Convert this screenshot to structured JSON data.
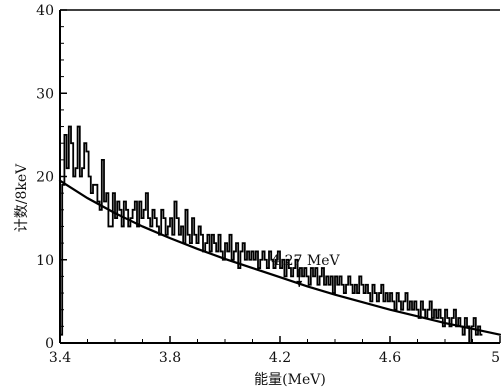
{
  "chart_data": {
    "type": "line",
    "xlabel": "能量(MeV)",
    "ylabel": "计数/8keV",
    "xlim": [
      3.4,
      5.0
    ],
    "ylim": [
      0,
      40
    ],
    "x_ticks": [
      "3.4",
      "3.8",
      "4.2",
      "4.6",
      "5"
    ],
    "y_ticks": [
      "0",
      "10",
      "20",
      "30",
      "40"
    ],
    "grid": false,
    "annotations": [
      {
        "text": "4.27 MeV",
        "x": 4.27,
        "y": 6.5
      }
    ],
    "series": [
      {
        "style": "histogram",
        "x_start": 3.4,
        "bin_width": 0.008,
        "values": [
          1,
          19,
          25,
          21,
          26,
          24,
          20,
          21,
          26,
          20,
          21,
          24,
          23,
          20,
          18,
          19,
          19,
          17,
          16,
          22,
          17,
          18,
          14,
          14,
          18,
          15,
          17,
          16,
          14,
          17,
          16,
          14,
          15,
          16,
          17,
          14,
          17,
          15,
          16,
          18,
          15,
          14,
          16,
          15,
          14,
          13,
          16,
          15,
          13,
          14,
          15,
          13,
          17,
          15,
          13,
          14,
          12,
          16,
          13,
          12,
          15,
          13,
          12,
          14,
          13,
          11,
          12,
          13,
          11,
          13,
          12,
          11,
          13,
          11,
          10,
          12,
          11,
          13,
          10,
          11,
          12,
          9,
          11,
          12,
          10,
          11,
          10,
          11,
          10,
          11,
          9,
          10,
          11,
          10,
          9,
          11,
          10,
          9,
          10,
          11,
          9,
          10,
          8,
          10,
          9,
          8,
          9,
          10,
          8,
          9,
          8,
          9,
          8,
          7,
          9,
          8,
          9,
          7,
          8,
          9,
          7,
          8,
          7,
          8,
          6,
          8,
          7,
          8,
          7,
          6,
          7,
          8,
          7,
          6,
          7,
          6,
          8,
          7,
          6,
          7,
          6,
          5,
          7,
          6,
          5,
          6,
          7,
          5,
          6,
          5,
          6,
          5,
          4,
          6,
          5,
          4,
          5,
          6,
          4,
          5,
          4,
          5,
          4,
          3,
          5,
          4,
          3,
          4,
          5,
          3,
          4,
          3,
          4,
          3,
          2,
          4,
          3,
          2,
          3,
          4,
          2,
          3,
          2,
          1,
          3,
          2,
          0,
          2,
          3,
          1,
          2,
          1
        ]
      },
      {
        "style": "fit-curve",
        "x": [
          3.4,
          3.5,
          3.6,
          3.7,
          3.8,
          3.9,
          4.0,
          4.1,
          4.2,
          4.3,
          4.4,
          4.5,
          4.6,
          4.7,
          4.8,
          4.9,
          5.0
        ],
        "values": [
          19.5,
          17.4,
          15.6,
          14.0,
          12.6,
          11.3,
          10.1,
          9.0,
          7.9,
          6.8,
          5.8,
          4.9,
          4.0,
          3.2,
          2.4,
          1.7,
          1.0
        ]
      }
    ]
  }
}
